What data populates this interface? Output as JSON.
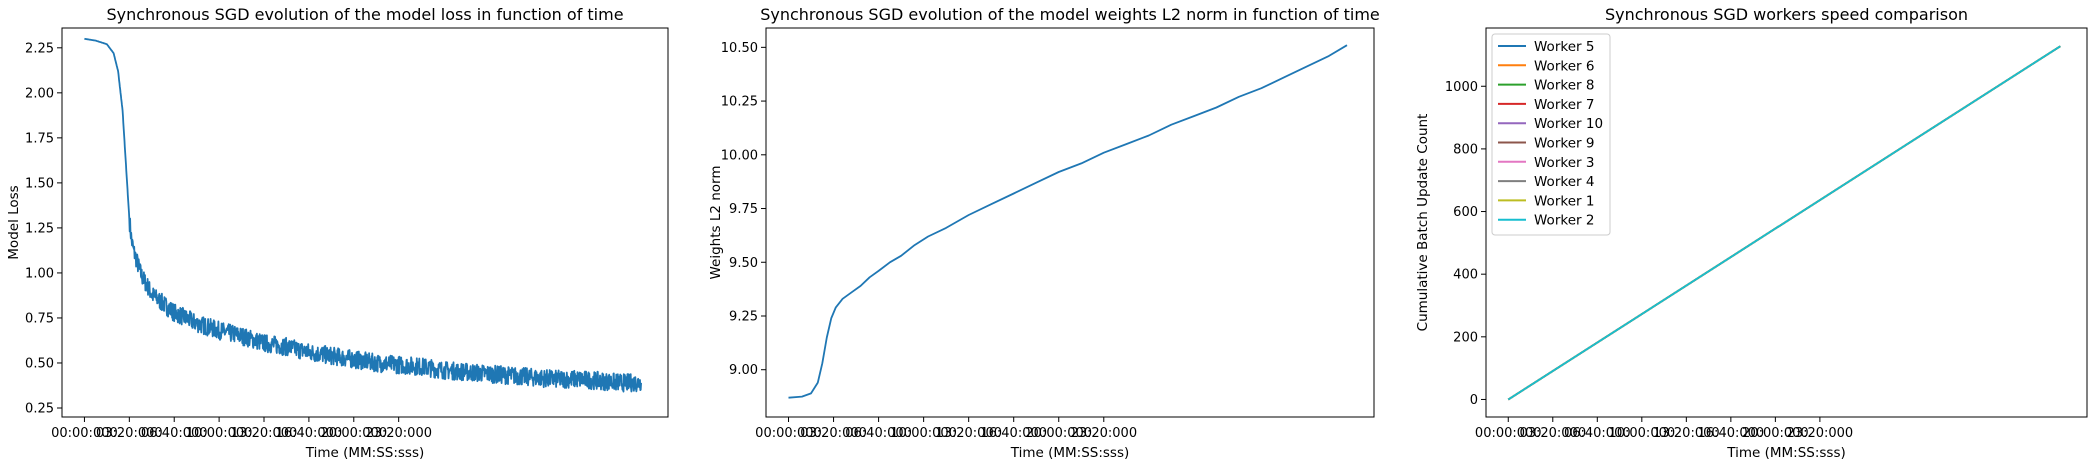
{
  "chart_data": [
    {
      "type": "line",
      "title": "Synchronous SGD evolution of the model loss in function of time",
      "xlabel": "Time (MM:SS:sss)",
      "ylabel": "Model Loss",
      "x_tick_labels": [
        "00:00:000",
        "03:20:000",
        "06:40:000",
        "10:00:000",
        "13:20:000",
        "16:40:000",
        "20:00:000",
        "23:20:000"
      ],
      "y_tick_labels": [
        "0.25",
        "0.50",
        "0.75",
        "1.00",
        "1.25",
        "1.50",
        "1.75",
        "2.00",
        "2.25"
      ],
      "ylim": [
        0.2,
        2.36
      ],
      "xlim_s": [
        -100,
        2600
      ],
      "series": [
        {
          "color": "#1f77b4",
          "x_s": [
            0,
            50,
            100,
            130,
            150,
            170,
            180,
            190,
            200,
            210,
            220,
            230,
            240,
            250,
            260,
            270,
            280,
            300,
            350,
            400,
            500,
            600,
            700,
            800,
            900,
            1000,
            1100,
            1200,
            1300,
            1400,
            1500,
            1600,
            1700,
            1800,
            1900,
            2000,
            2100,
            2200,
            2300,
            2400,
            2480
          ],
          "y": [
            2.3,
            2.29,
            2.27,
            2.22,
            2.12,
            1.9,
            1.7,
            1.5,
            1.3,
            1.18,
            1.12,
            1.08,
            1.04,
            1.0,
            0.97,
            0.95,
            0.93,
            0.88,
            0.83,
            0.78,
            0.72,
            0.68,
            0.65,
            0.61,
            0.59,
            0.56,
            0.54,
            0.52,
            0.5,
            0.49,
            0.48,
            0.46,
            0.45,
            0.44,
            0.43,
            0.42,
            0.41,
            0.41,
            0.4,
            0.39,
            0.39
          ],
          "noise_amplitude": 0.05
        }
      ]
    },
    {
      "type": "line",
      "title": "Synchronous SGD evolution of the model weights L2 norm in function of time",
      "xlabel": "Time (MM:SS:sss)",
      "ylabel": "Weights L2 norm",
      "x_tick_labels": [
        "00:00:000",
        "03:20:000",
        "06:40:000",
        "10:00:000",
        "13:20:000",
        "16:40:000",
        "20:00:000",
        "23:20:000"
      ],
      "y_tick_labels": [
        "9.00",
        "9.25",
        "9.50",
        "9.75",
        "10.00",
        "10.25",
        "10.50"
      ],
      "ylim": [
        8.78,
        10.59
      ],
      "xlim_s": [
        -100,
        2600
      ],
      "series": [
        {
          "color": "#1f77b4",
          "x_s": [
            0,
            60,
            100,
            130,
            150,
            170,
            190,
            210,
            240,
            280,
            320,
            360,
            400,
            450,
            500,
            560,
            620,
            700,
            800,
            900,
            1000,
            1100,
            1200,
            1300,
            1400,
            1500,
            1600,
            1700,
            1800,
            1900,
            2000,
            2100,
            2200,
            2300,
            2400,
            2480
          ],
          "y": [
            8.87,
            8.875,
            8.89,
            8.94,
            9.03,
            9.15,
            9.24,
            9.29,
            9.33,
            9.36,
            9.39,
            9.43,
            9.46,
            9.5,
            9.53,
            9.58,
            9.62,
            9.66,
            9.72,
            9.77,
            9.82,
            9.87,
            9.92,
            9.96,
            10.01,
            10.05,
            10.09,
            10.14,
            10.18,
            10.22,
            10.27,
            10.31,
            10.36,
            10.41,
            10.46,
            10.51
          ]
        }
      ]
    },
    {
      "type": "line",
      "title": "Synchronous SGD workers speed comparison",
      "xlabel": "Time (MM:SS:sss)",
      "ylabel": "Cumulative Batch Update Count",
      "x_tick_labels": [
        "00:00:000",
        "03:20:000",
        "06:40:000",
        "10:00:000",
        "13:20:000",
        "16:40:000",
        "20:00:000",
        "23:20:000"
      ],
      "y_tick_labels": [
        "0",
        "200",
        "400",
        "600",
        "800",
        "1000"
      ],
      "ylim": [
        -56,
        1186
      ],
      "xlim_s": [
        -100,
        2600
      ],
      "legend_position": "upper-left",
      "series": [
        {
          "name": "Worker 5",
          "color": "#1f77b4",
          "x_s": [
            0,
            2480
          ],
          "y": [
            0,
            1128
          ]
        },
        {
          "name": "Worker 6",
          "color": "#ff7f0e",
          "x_s": [
            0,
            2480
          ],
          "y": [
            0,
            1128
          ]
        },
        {
          "name": "Worker 8",
          "color": "#2ca02c",
          "x_s": [
            0,
            2480
          ],
          "y": [
            0,
            1128
          ]
        },
        {
          "name": "Worker 7",
          "color": "#d62728",
          "x_s": [
            0,
            2480
          ],
          "y": [
            0,
            1128
          ]
        },
        {
          "name": "Worker 10",
          "color": "#9467bd",
          "x_s": [
            0,
            2480
          ],
          "y": [
            0,
            1128
          ]
        },
        {
          "name": "Worker 9",
          "color": "#8c564b",
          "x_s": [
            0,
            2480
          ],
          "y": [
            0,
            1128
          ]
        },
        {
          "name": "Worker 3",
          "color": "#e377c2",
          "x_s": [
            0,
            2480
          ],
          "y": [
            0,
            1128
          ]
        },
        {
          "name": "Worker 4",
          "color": "#7f7f7f",
          "x_s": [
            0,
            2480
          ],
          "y": [
            0,
            1128
          ]
        },
        {
          "name": "Worker 1",
          "color": "#bcbd22",
          "x_s": [
            0,
            2480
          ],
          "y": [
            0,
            1128
          ]
        },
        {
          "name": "Worker 2",
          "color": "#17becf",
          "x_s": [
            0,
            2480
          ],
          "y": [
            0,
            1128
          ]
        }
      ]
    }
  ]
}
